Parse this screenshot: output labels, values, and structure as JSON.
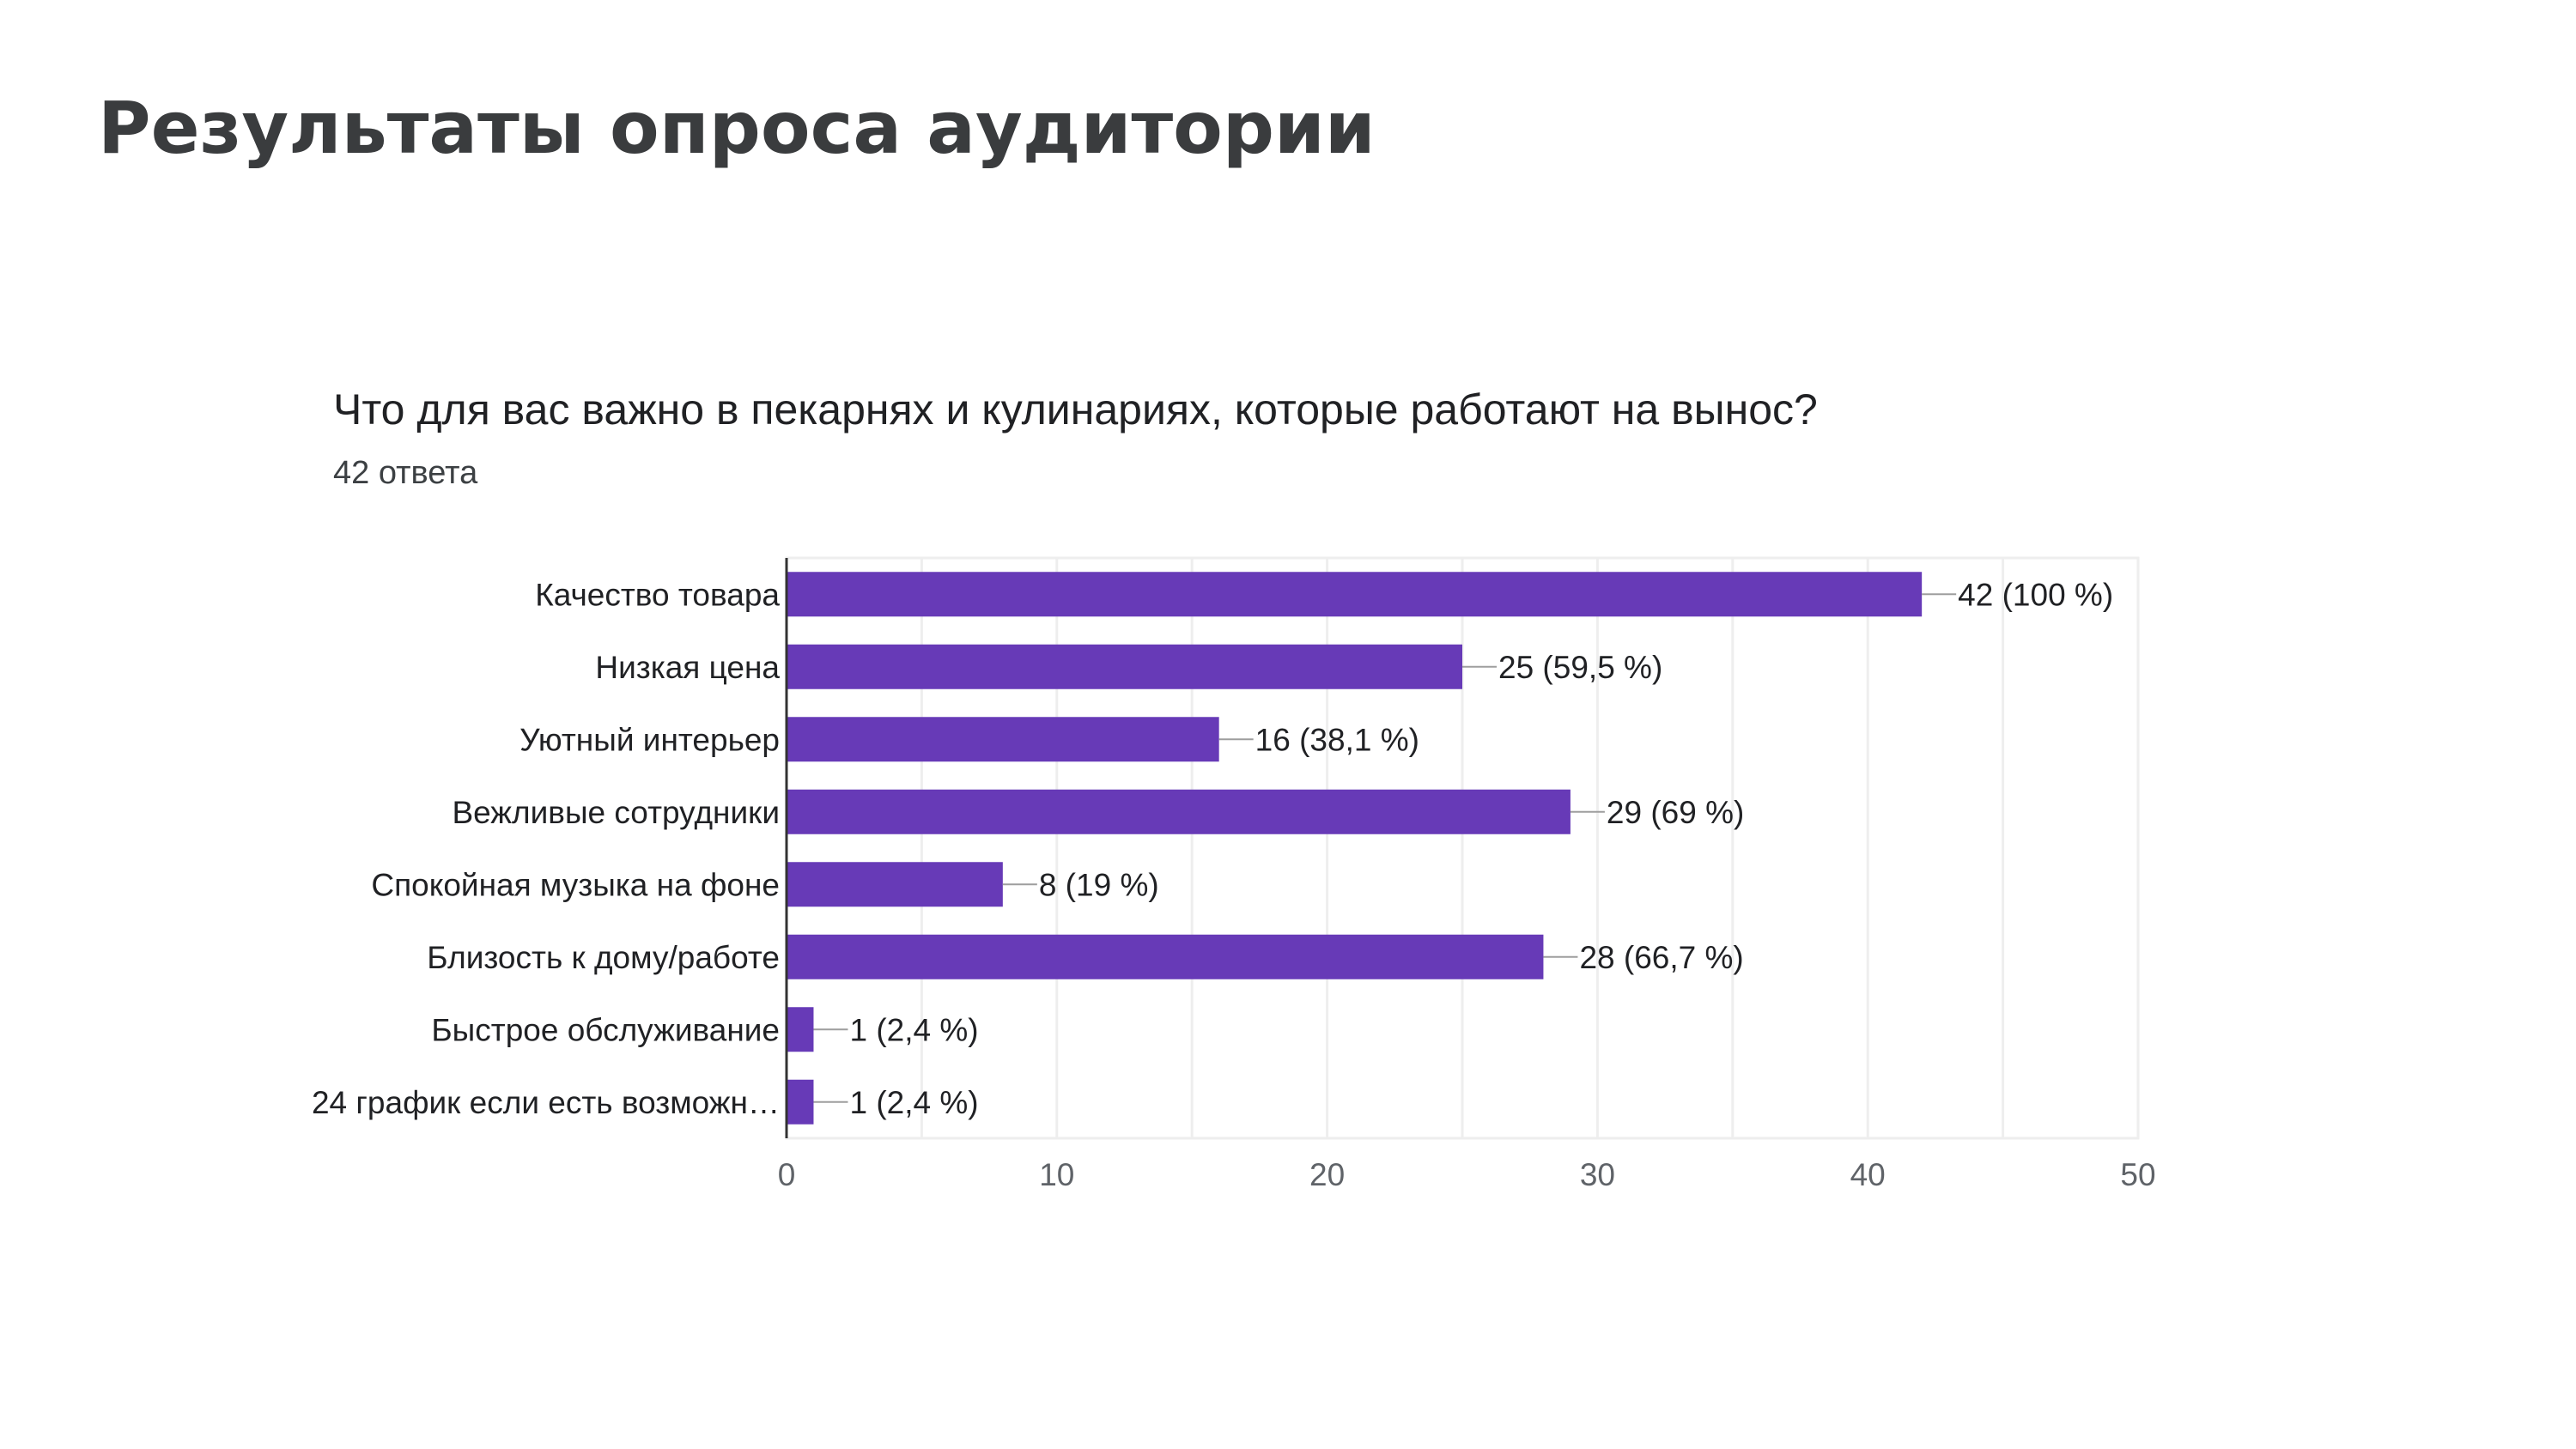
{
  "slide": {
    "title": "Результаты опроса аудитории"
  },
  "form": {
    "question": "Что для вас важно в пекарнях и кулинариях, которые работают на вынос?",
    "responses": "42 ответа"
  },
  "colors": {
    "bar": "#673ab7",
    "title": "#3a3c3e",
    "text": "#202124",
    "grid": "#eeeeee",
    "axis": "#333333"
  },
  "chart_data": {
    "type": "bar",
    "orientation": "horizontal",
    "categories": [
      "Качество товара",
      "Низкая цена",
      "Уютный интерьер",
      "Вежливые сотрудники",
      "Спокойная музыка на фоне",
      "Близость к дому/работе",
      "Быстрое обслуживание",
      "24 график если есть возможн…"
    ],
    "values": [
      42,
      25,
      16,
      29,
      8,
      28,
      1,
      1
    ],
    "data_labels": [
      "42 (100 %)",
      "25 (59,5 %)",
      "16 (38,1 %)",
      "29 (69 %)",
      "8 (19 %)",
      "28 (66,7 %)",
      "1 (2,4 %)",
      "1 (2,4 %)"
    ],
    "xlim": [
      0,
      50
    ],
    "xticks": [
      0,
      10,
      20,
      30,
      40,
      50
    ],
    "grid": true,
    "legend": "none"
  }
}
